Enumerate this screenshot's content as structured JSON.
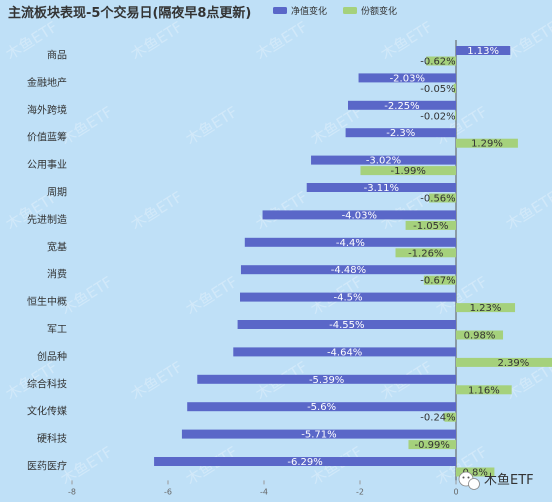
{
  "chart_data": {
    "type": "bar",
    "orientation": "horizontal",
    "title": "主流板块表现-5个交易日(隔夜早8点更新)",
    "categories": [
      "商品",
      "金融地产",
      "海外跨境",
      "价值蓝筹",
      "公用事业",
      "周期",
      "先进制造",
      "宽基",
      "消费",
      "恒生中概",
      "军工",
      "创品种",
      "综合科技",
      "文化传媒",
      "硬科技",
      "医药医疗"
    ],
    "series": [
      {
        "name": "净值变化",
        "values": [
          1.13,
          -2.03,
          -2.25,
          -2.3,
          -3.02,
          -3.11,
          -4.03,
          -4.4,
          -4.48,
          -4.5,
          -4.55,
          -4.64,
          -5.39,
          -5.6,
          -5.71,
          -6.29
        ],
        "color": "#5a67c8"
      },
      {
        "name": "份额变化",
        "values": [
          -0.62,
          -0.05,
          -0.02,
          1.29,
          -1.99,
          -0.56,
          -1.05,
          -1.26,
          -0.67,
          1.23,
          0.98,
          2.39,
          1.16,
          -0.24,
          -0.99,
          0.8
        ],
        "color": "#a5d17c"
      }
    ],
    "value_labels": [
      [
        "1.13%",
        "-2.03%",
        "-2.25%",
        "-2.3%",
        "-3.02%",
        "-3.11%",
        "-4.03%",
        "-4.4%",
        "-4.48%",
        "-4.5%",
        "-4.55%",
        "-4.64%",
        "-5.39%",
        "-5.6%",
        "-5.71%",
        "-6.29%"
      ],
      [
        "-0.62%",
        "-0.05%",
        "-0.02%",
        "1.29%",
        "-1.99%",
        "-0.56%",
        "-1.05%",
        "-1.26%",
        "-0.67%",
        "1.23%",
        "0.98%",
        "2.39%",
        "1.16%",
        "-0.24%",
        "-0.99%",
        "0.8%"
      ]
    ],
    "xlim": [
      -8,
      2
    ],
    "x_ticks": [
      "-8",
      "-6",
      "-4",
      "-2",
      "0"
    ],
    "legend_position": "top"
  },
  "watermark": "木鱼ETF",
  "brand": {
    "name": "木鱼ETF",
    "icon": "wechat-icon"
  }
}
